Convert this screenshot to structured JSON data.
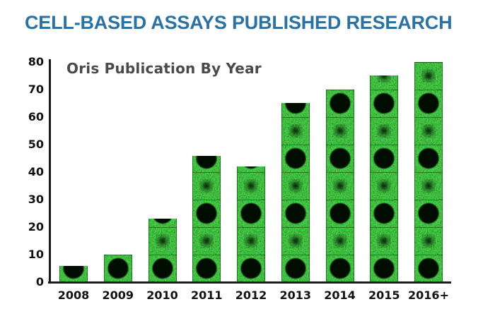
{
  "page": {
    "title": "CELL-BASED ASSAYS PUBLISHED RESEARCH",
    "title_color": "#2B71A1",
    "background": "#FFFFFF"
  },
  "chart_data": {
    "type": "bar",
    "title": "Oris Publication By Year",
    "categories": [
      "2008",
      "2009",
      "2010",
      "2011",
      "2012",
      "2013",
      "2014",
      "2015",
      "2016+"
    ],
    "values": [
      6,
      10,
      23,
      46,
      42,
      65,
      70,
      75,
      80
    ],
    "xlabel": "",
    "ylabel": "",
    "ylim": [
      0,
      80
    ],
    "yticks": [
      0,
      10,
      20,
      30,
      40,
      50,
      60,
      70,
      80
    ],
    "grid": false,
    "legend": false,
    "title_color": "#4A4A4A",
    "axis_color": "#1A1A1A",
    "tick_label_color": "#111111",
    "bar_texture": {
      "description": "green fluorescent cell-micrograph tiles stacked vertically; alternating large dark circular exclusion zones and faint dark smudges",
      "green_base": "#0E7E0E",
      "spot_color": "#060D06"
    }
  }
}
